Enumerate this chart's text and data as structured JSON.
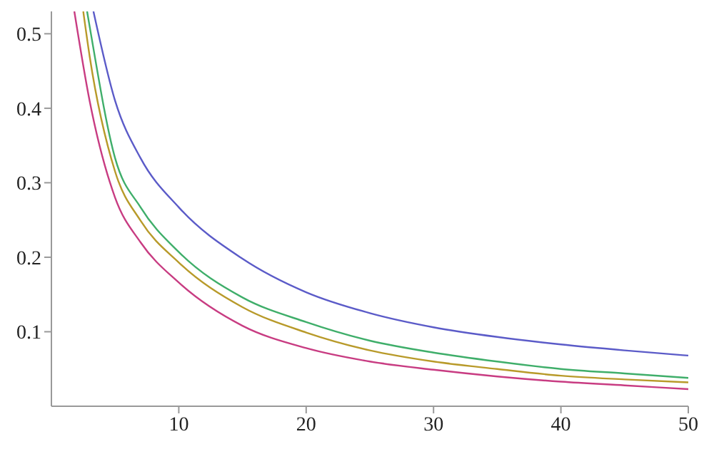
{
  "chart_data": {
    "type": "line",
    "xlim": [
      0,
      50
    ],
    "ylim": [
      0,
      0.53
    ],
    "xticks": [
      10,
      20,
      30,
      40,
      50
    ],
    "yticks": [
      0.1,
      0.2,
      0.3,
      0.4,
      0.5
    ],
    "grid": false,
    "marker": "none",
    "line_style": "solid",
    "series": [
      {
        "color": "#5b5bc8",
        "x": [
          3.3,
          5,
          7,
          10,
          15,
          20,
          25,
          30,
          35,
          40,
          45,
          50
        ],
        "values": [
          0.53,
          0.41,
          0.333,
          0.267,
          0.198,
          0.153,
          0.125,
          0.106,
          0.093,
          0.083,
          0.075,
          0.068
        ]
      },
      {
        "color": "#3fae6a",
        "x": [
          2.8,
          3,
          5,
          7,
          10,
          15,
          20,
          25,
          30,
          35,
          40,
          45,
          50
        ],
        "values": [
          0.53,
          0.51,
          0.333,
          0.267,
          0.207,
          0.146,
          0.113,
          0.088,
          0.072,
          0.06,
          0.05,
          0.044,
          0.038
        ]
      },
      {
        "color": "#b89a2a",
        "x": [
          2.5,
          3,
          5,
          7,
          10,
          15,
          20,
          25,
          30,
          35,
          40,
          45,
          50
        ],
        "values": [
          0.53,
          0.47,
          0.315,
          0.249,
          0.193,
          0.133,
          0.099,
          0.075,
          0.06,
          0.05,
          0.041,
          0.036,
          0.032
        ]
      },
      {
        "color": "#c83c82",
        "x": [
          1.8,
          3,
          5,
          7,
          10,
          15,
          20,
          25,
          30,
          35,
          40,
          45,
          50
        ],
        "values": [
          0.53,
          0.41,
          0.28,
          0.22,
          0.166,
          0.108,
          0.078,
          0.06,
          0.049,
          0.04,
          0.033,
          0.028,
          0.023
        ]
      }
    ]
  }
}
